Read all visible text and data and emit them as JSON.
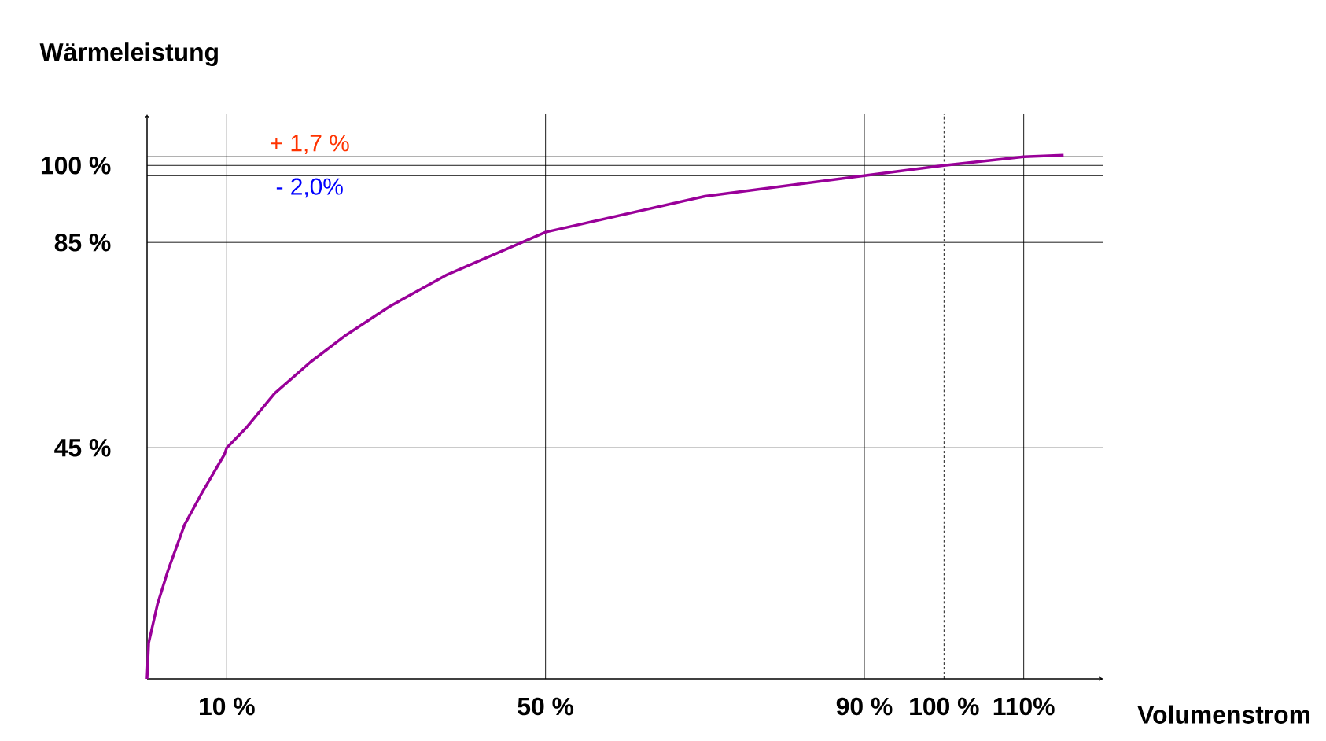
{
  "chart_data": {
    "type": "line",
    "xlabel": "Volumenstrom",
    "ylabel": "Wärmeleistung",
    "series": [
      {
        "color": "#990099",
        "x": [
          0,
          0.2,
          1.3,
          2.6,
          4.7,
          6.8,
          9.7,
          10,
          12.5,
          16,
          20.5,
          25,
          30.4,
          37.5,
          50,
          70,
          90,
          100,
          110,
          115
        ],
        "values": [
          0,
          7,
          14.5,
          21,
          30,
          36,
          43.7,
          45,
          49,
          55.6,
          61.7,
          67,
          72.5,
          78.6,
          87,
          94,
          98,
          100,
          101.7,
          102
        ]
      }
    ],
    "xlim": [
      0,
      120
    ],
    "ylim": [
      0,
      110
    ],
    "xticks": [
      {
        "value": 10,
        "label": "10 %"
      },
      {
        "value": 50,
        "label": "50 %"
      },
      {
        "value": 90,
        "label": "90 %"
      },
      {
        "value": 100,
        "label": "100 %"
      },
      {
        "value": 110,
        "label": "110%"
      }
    ],
    "yticks": [
      {
        "value": 45,
        "label": "45 %"
      },
      {
        "value": 85,
        "label": "85 %"
      },
      {
        "value": 100,
        "label": "100 %"
      }
    ],
    "annotations": [
      "+ 1,7 %",
      "- 2,0%"
    ],
    "ref_lines": [
      {
        "axis": "y",
        "value": 101.7
      },
      {
        "axis": "y",
        "value": 98
      },
      {
        "axis": "y",
        "value": 100
      },
      {
        "axis": "y",
        "value": 85
      },
      {
        "axis": "y",
        "value": 45
      },
      {
        "axis": "x",
        "value": 10
      },
      {
        "axis": "x",
        "value": 50
      },
      {
        "axis": "x",
        "value": 90
      },
      {
        "axis": "x",
        "value": 100,
        "line_style": "dashed"
      },
      {
        "axis": "x",
        "value": 110
      }
    ],
    "grid": false,
    "marker": "none"
  }
}
